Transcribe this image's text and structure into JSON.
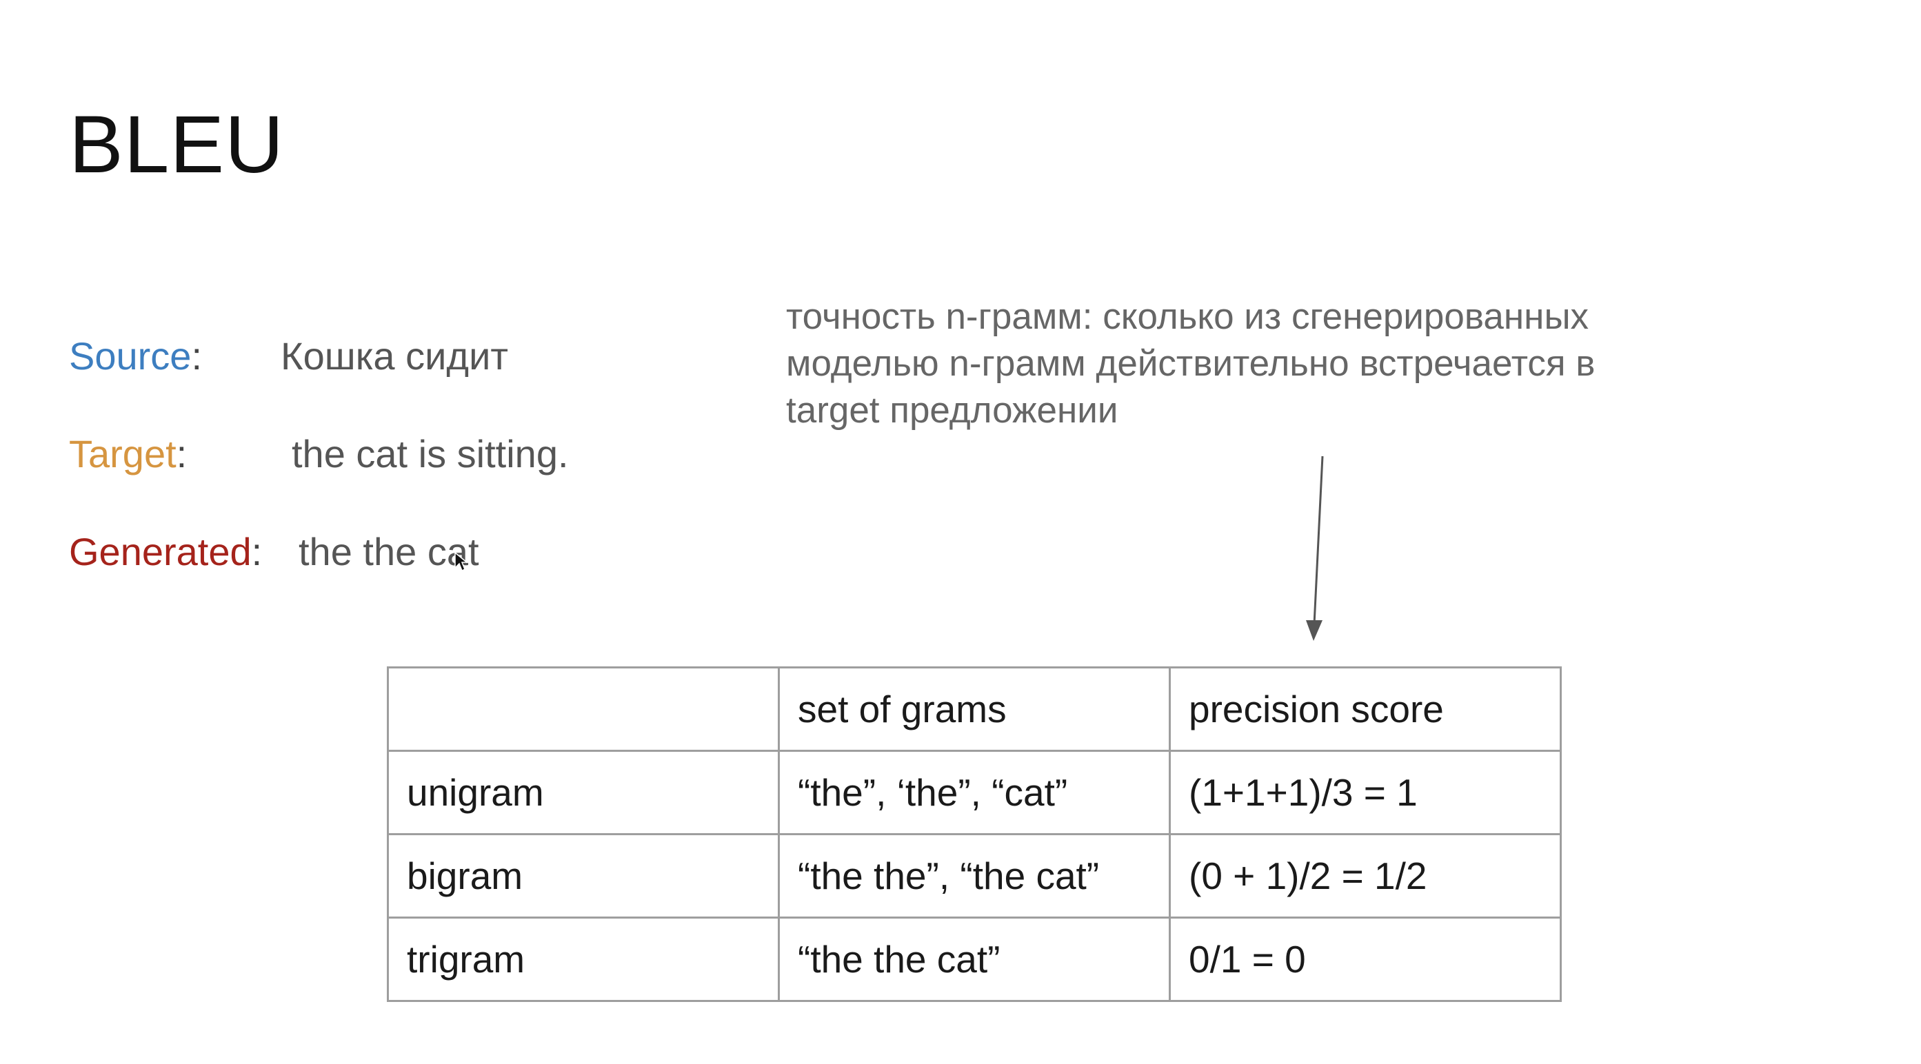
{
  "slide": {
    "title": "BLEU",
    "source": {
      "label": "Source",
      "colon": ":",
      "value": "Кошка сидит"
    },
    "target": {
      "label": "Target",
      "colon": ":",
      "value": "the cat is sitting."
    },
    "generated": {
      "label": "Generated",
      "colon": ":",
      "value": "the the cat"
    },
    "note_lines": [
      "точность n-грамм: сколько из сгенерированных",
      "моделью n-грамм действительно встречается в",
      "target предложении"
    ],
    "colors": {
      "source": "#3d7ec0",
      "target": "#d69540",
      "generated": "#a5231b"
    },
    "table": {
      "headers": [
        "",
        "set of grams",
        "precision score"
      ],
      "rows": [
        [
          "unigram",
          "“the”, ‘the”, “cat”",
          "(1+1+1)/3 = 1"
        ],
        [
          "bigram",
          "“the the”, “the cat”",
          "(0 + 1)/2 = 1/2"
        ],
        [
          "trigram",
          "“the the cat”",
          "0/1 = 0"
        ]
      ]
    }
  }
}
